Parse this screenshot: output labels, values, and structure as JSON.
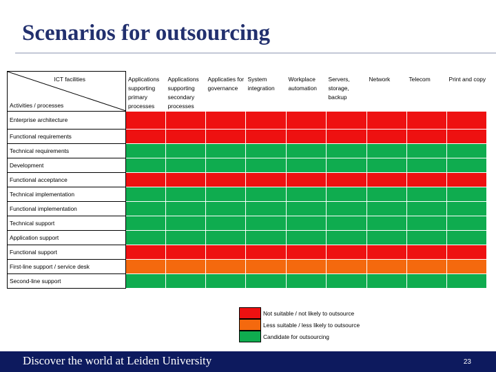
{
  "title": "Scenarios for outsourcing",
  "corner": {
    "top": "ICT facilities",
    "bottom": "Activities / processes"
  },
  "columns": [
    "Applications supporting primary processes",
    "Applications supporting secondary processes",
    "Applicaties for governance",
    "System integration",
    "Workplace automation",
    "Servers, storage, backup",
    "Network",
    "Telecom",
    "Print and copy"
  ],
  "rows": [
    {
      "label": "Enterprise architecture",
      "cells": [
        "R",
        "R",
        "R",
        "R",
        "R",
        "R",
        "R",
        "R",
        "R"
      ]
    },
    {
      "label": "Functional requirements",
      "cells": [
        "R",
        "R",
        "R",
        "R",
        "R",
        "R",
        "R",
        "R",
        "R"
      ]
    },
    {
      "label": "Technical requirements",
      "cells": [
        "G",
        "G",
        "G",
        "G",
        "G",
        "G",
        "G",
        "G",
        "G"
      ]
    },
    {
      "label": "Development",
      "cells": [
        "G",
        "G",
        "G",
        "G",
        "G",
        "G",
        "G",
        "G",
        "G"
      ]
    },
    {
      "label": "Functional acceptance",
      "cells": [
        "R",
        "R",
        "R",
        "R",
        "R",
        "R",
        "R",
        "R",
        "R"
      ]
    },
    {
      "label": "Technical implementation",
      "cells": [
        "G",
        "G",
        "G",
        "G",
        "G",
        "G",
        "G",
        "G",
        "G"
      ]
    },
    {
      "label": "Functional implementation",
      "cells": [
        "G",
        "G",
        "G",
        "G",
        "G",
        "G",
        "G",
        "G",
        "G"
      ]
    },
    {
      "label": "Technical support",
      "cells": [
        "G",
        "G",
        "G",
        "G",
        "G",
        "G",
        "G",
        "G",
        "G"
      ]
    },
    {
      "label": "Application support",
      "cells": [
        "G",
        "G",
        "G",
        "G",
        "G",
        "G",
        "G",
        "G",
        "G"
      ]
    },
    {
      "label": "Functional support",
      "cells": [
        "R",
        "R",
        "R",
        "R",
        "R",
        "R",
        "R",
        "R",
        "R"
      ]
    },
    {
      "label": "First-line support / service desk",
      "cells": [
        "O",
        "O",
        "O",
        "O",
        "O",
        "O",
        "O",
        "O",
        "O"
      ]
    },
    {
      "label": "Second-line support",
      "cells": [
        "G",
        "G",
        "G",
        "G",
        "G",
        "G",
        "G",
        "G",
        "G"
      ]
    }
  ],
  "status_colors": {
    "R": "#ee1111",
    "O": "#f4690e",
    "G": "#0fac4f"
  },
  "legend": [
    {
      "key": "R",
      "label": "Not suitable / not likely to outsource"
    },
    {
      "key": "O",
      "label": "Less suitable / less likely to outsource"
    },
    {
      "key": "G",
      "label": "Candidate for outsourcing"
    }
  ],
  "footer": {
    "text": "Discover the world at Leiden University",
    "page_number": "23"
  }
}
